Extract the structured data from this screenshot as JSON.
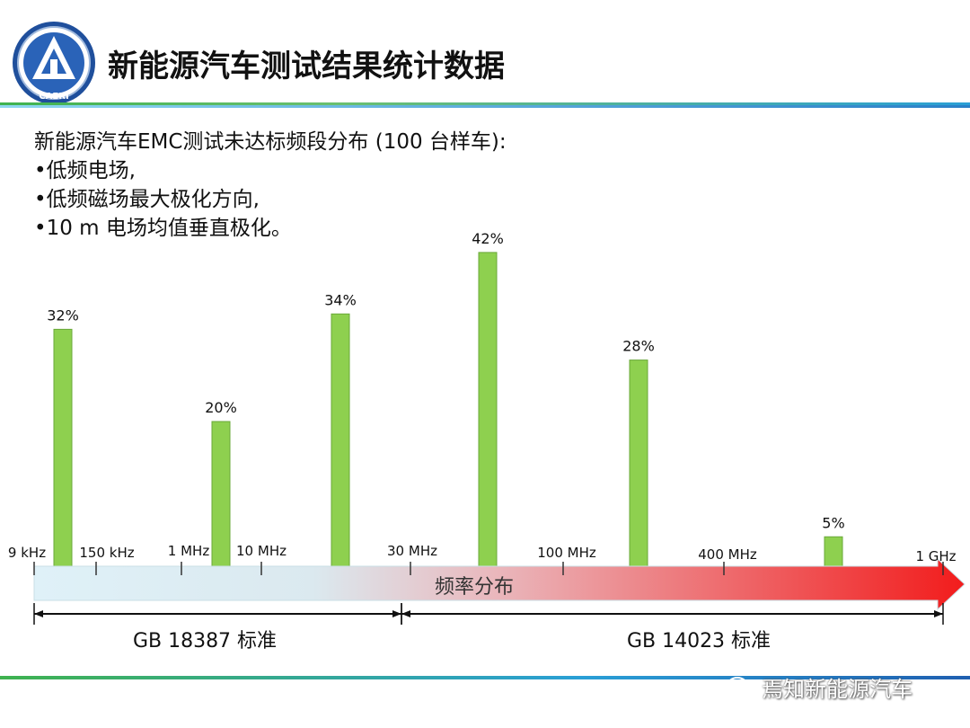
{
  "header": {
    "title": "新能源汽车测试结果统计数据",
    "logo_text": "CAERI"
  },
  "intro": {
    "heading": "新能源汽车EMC测试未达标频段分布 (100 台样车):",
    "bullets": [
      "•低频电场,",
      "•低频磁场最大极化方向,",
      "•10 m 电场均值垂直极化。"
    ]
  },
  "chart_data": {
    "type": "bar",
    "categories": [
      "32%",
      "20%",
      "34%",
      "42%",
      "28%",
      "5%"
    ],
    "values": [
      32,
      20,
      34,
      42,
      28,
      5
    ],
    "value_unit": "%",
    "xlabel": "频率分布",
    "ticks": [
      {
        "label": "9 kHz",
        "freq_hz": 9000
      },
      {
        "label": "150 kHz",
        "freq_hz": 150000
      },
      {
        "label": "1 MHz",
        "freq_hz": 1000000
      },
      {
        "label": "10 MHz",
        "freq_hz": 10000000
      },
      {
        "label": "30 MHz",
        "freq_hz": 30000000
      },
      {
        "label": "100 MHz",
        "freq_hz": 100000000
      },
      {
        "label": "400 MHz",
        "freq_hz": 400000000
      },
      {
        "label": "1 GHz",
        "freq_hz": 1000000000
      }
    ],
    "standards": [
      {
        "label": "GB 18387 标准",
        "from": "9 kHz",
        "to": "30 MHz"
      },
      {
        "label": "GB 14023 标准",
        "from": "30 MHz",
        "to": "1 GHz"
      }
    ],
    "ylim": [
      0,
      45
    ],
    "colors": {
      "bar": "#8ed04f",
      "bar_edge": "#6aa83a"
    }
  },
  "watermark": {
    "text": "焉知新能源汽车"
  }
}
